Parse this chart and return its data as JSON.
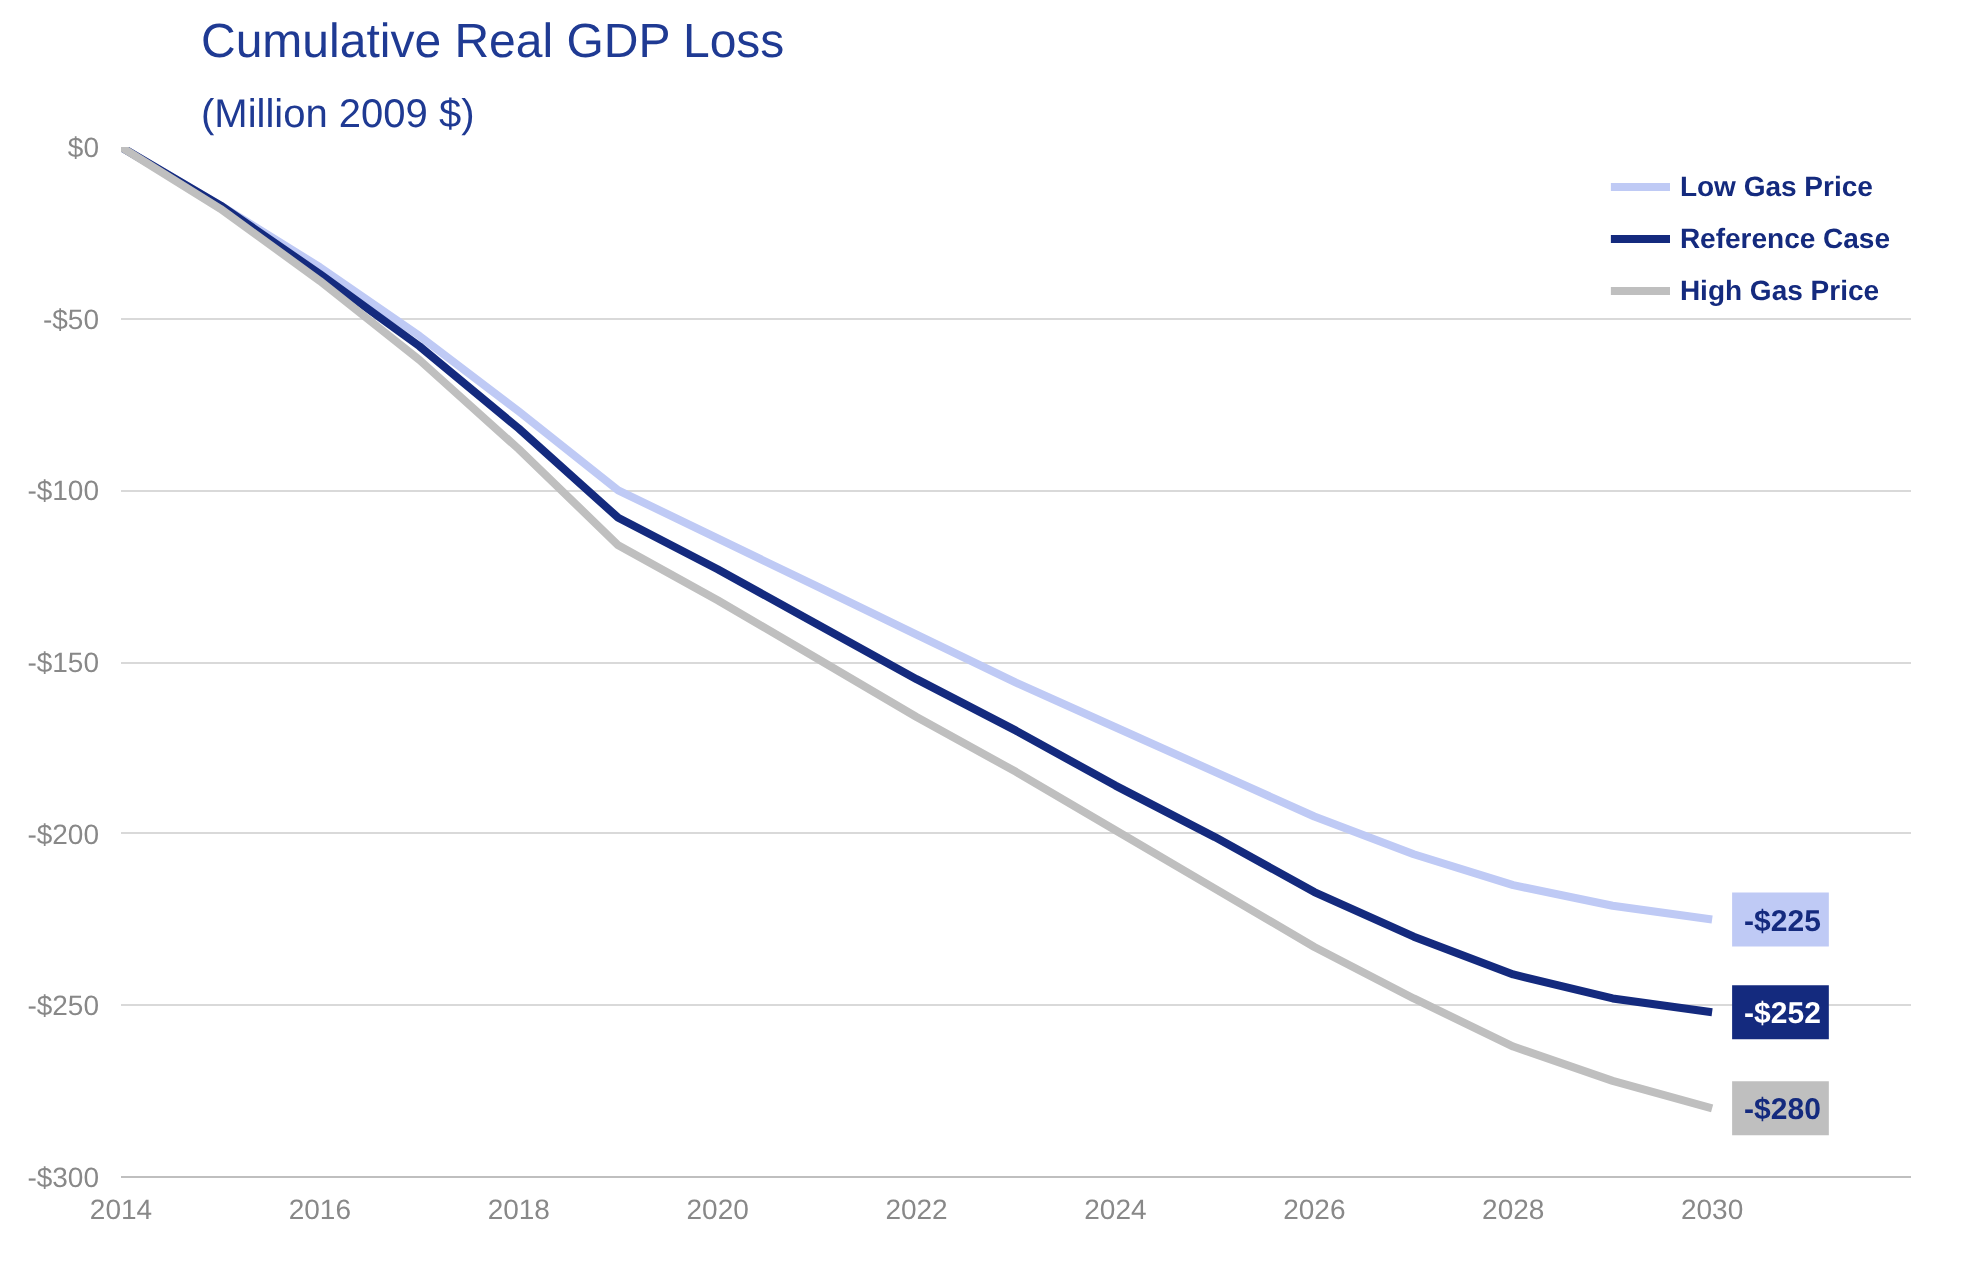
{
  "chart_data": {
    "type": "line",
    "title": "Cumulative Real GDP Loss",
    "subtitle": "(Million 2009 $)",
    "x": [
      2014,
      2015,
      2016,
      2017,
      2018,
      2019,
      2020,
      2021,
      2022,
      2023,
      2024,
      2025,
      2026,
      2027,
      2028,
      2029,
      2030
    ],
    "series": [
      {
        "name": "Low Gas Price",
        "color": "#bfcaf5",
        "values": [
          0,
          -17,
          -35,
          -55,
          -77,
          -100,
          -114,
          -128,
          -142,
          -156,
          -169,
          -182,
          -195,
          -206,
          -215,
          -221,
          -225
        ],
        "value_labels": [
          null,
          null,
          null,
          null,
          null,
          null,
          null,
          null,
          null,
          null,
          null,
          null,
          null,
          null,
          null,
          null,
          "-$225"
        ]
      },
      {
        "name": "Reference Case",
        "color": "#142a7e",
        "values": [
          0,
          -17,
          -37,
          -58,
          -82,
          -108,
          -123,
          -139,
          -155,
          -170,
          -186,
          -201,
          -217,
          -230,
          -241,
          -248,
          -252
        ],
        "value_labels": [
          null,
          null,
          null,
          null,
          null,
          null,
          null,
          null,
          null,
          null,
          null,
          null,
          null,
          null,
          null,
          null,
          "-$252"
        ]
      },
      {
        "name": "High Gas Price",
        "color": "#bfbfbf",
        "values": [
          0,
          -18,
          -39,
          -62,
          -88,
          -116,
          -132,
          -149,
          -166,
          -182,
          -199,
          -216,
          -233,
          -248,
          -262,
          -272,
          -280
        ],
        "value_labels": [
          null,
          null,
          null,
          null,
          null,
          null,
          null,
          null,
          null,
          null,
          null,
          null,
          null,
          null,
          null,
          null,
          "-$280"
        ]
      }
    ],
    "xlim": [
      2014,
      2032
    ],
    "ylim": [
      -300,
      0
    ],
    "xticks": [
      2014,
      2016,
      2018,
      2020,
      2022,
      2024,
      2026,
      2028,
      2030
    ],
    "yticks": [
      {
        "value": 0,
        "label": "$0"
      },
      {
        "value": -50,
        "label": "-$50"
      },
      {
        "value": -100,
        "label": "-$100"
      },
      {
        "value": -150,
        "label": "-$150"
      },
      {
        "value": -200,
        "label": "-$200"
      },
      {
        "value": -250,
        "label": "-$250"
      },
      {
        "value": -300,
        "label": "-$300"
      }
    ],
    "grid": "y",
    "legend": "top right",
    "line_style": "solid",
    "marker": "none"
  }
}
